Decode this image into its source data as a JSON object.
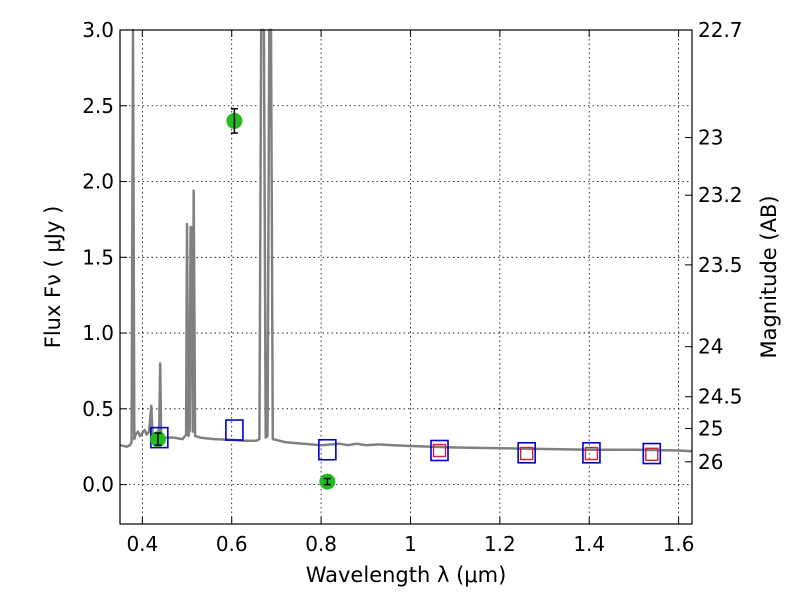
{
  "chart_data": {
    "type": "scatter",
    "xlabel": "Wavelength  λ (μm)",
    "ylabel": "Flux  Fν  ( μJy )",
    "ylabel2": "Magnitude (AB)",
    "xlim": [
      0.35,
      1.63
    ],
    "ylim": [
      -0.26,
      3.0
    ],
    "x_ticks": [
      0.4,
      0.6,
      0.8,
      1.0,
      1.2,
      1.4,
      1.6
    ],
    "x_tick_labels": [
      "0.4",
      "0.6",
      "0.8",
      "1",
      "1.2",
      "1.4",
      "1.6"
    ],
    "y_ticks": [
      0.0,
      0.5,
      1.0,
      1.5,
      2.0,
      2.5,
      3.0
    ],
    "y_tick_labels": [
      "0.0",
      "0.5",
      "1.0",
      "1.5",
      "2.0",
      "2.5",
      "3.0"
    ],
    "mag_ticks": [
      {
        "label": "22.7",
        "flux": 3.0
      },
      {
        "label": "23",
        "flux": 2.29
      },
      {
        "label": "23.2",
        "flux": 1.91
      },
      {
        "label": "23.5",
        "flux": 1.45
      },
      {
        "label": "24",
        "flux": 0.91
      },
      {
        "label": "24.5",
        "flux": 0.58
      },
      {
        "label": "25",
        "flux": 0.37
      },
      {
        "label": "26",
        "flux": 0.15
      }
    ],
    "grid": true,
    "colors": {
      "spectrum": "#808080",
      "observed": "#22bb22",
      "model_blue": "#0000cc",
      "model_red": "#cc2233",
      "errorbar": "#000000"
    },
    "series": [
      {
        "marker": "green-circle",
        "points": [
          {
            "x": 0.435,
            "y": 0.3,
            "err": 0.04
          },
          {
            "x": 0.606,
            "y": 2.4,
            "err": 0.08
          },
          {
            "x": 0.814,
            "y": 0.02,
            "err": 0.02
          }
        ]
      },
      {
        "marker": "blue-square",
        "points": [
          {
            "x": 0.438,
            "y": 0.31
          },
          {
            "x": 0.606,
            "y": 0.36
          },
          {
            "x": 0.814,
            "y": 0.23
          },
          {
            "x": 1.065,
            "y": 0.225
          },
          {
            "x": 1.26,
            "y": 0.21
          },
          {
            "x": 1.405,
            "y": 0.21
          },
          {
            "x": 1.54,
            "y": 0.205
          }
        ]
      },
      {
        "marker": "red-square",
        "points": [
          {
            "x": 1.065,
            "y": 0.225
          },
          {
            "x": 1.26,
            "y": 0.205
          },
          {
            "x": 1.405,
            "y": 0.205
          },
          {
            "x": 1.54,
            "y": 0.2
          }
        ]
      },
      {
        "marker": "line",
        "points": [
          [
            0.35,
            0.26
          ],
          [
            0.365,
            0.25
          ],
          [
            0.372,
            0.26
          ],
          [
            0.376,
            0.28
          ],
          [
            0.379,
            3.0
          ],
          [
            0.382,
            0.3
          ],
          [
            0.385,
            0.33
          ],
          [
            0.39,
            0.35
          ],
          [
            0.395,
            0.32
          ],
          [
            0.4,
            0.34
          ],
          [
            0.405,
            0.36
          ],
          [
            0.41,
            0.33
          ],
          [
            0.415,
            0.35
          ],
          [
            0.42,
            0.52
          ],
          [
            0.423,
            0.33
          ],
          [
            0.43,
            0.32
          ],
          [
            0.435,
            0.33
          ],
          [
            0.438,
            0.4
          ],
          [
            0.44,
            0.8
          ],
          [
            0.442,
            0.33
          ],
          [
            0.45,
            0.31
          ],
          [
            0.47,
            0.31
          ],
          [
            0.49,
            0.3
          ],
          [
            0.498,
            0.33
          ],
          [
            0.5,
            1.72
          ],
          [
            0.503,
            0.32
          ],
          [
            0.506,
            0.36
          ],
          [
            0.508,
            1.7
          ],
          [
            0.51,
            1.7
          ],
          [
            0.513,
            0.35
          ],
          [
            0.515,
            1.94
          ],
          [
            0.518,
            0.32
          ],
          [
            0.53,
            0.31
          ],
          [
            0.56,
            0.3
          ],
          [
            0.6,
            0.295
          ],
          [
            0.63,
            0.29
          ],
          [
            0.655,
            0.29
          ],
          [
            0.662,
            0.3
          ],
          [
            0.666,
            3.0
          ],
          [
            0.672,
            3.0
          ],
          [
            0.676,
            0.31
          ],
          [
            0.68,
            0.32
          ],
          [
            0.684,
            3.0
          ],
          [
            0.688,
            3.0
          ],
          [
            0.692,
            0.3
          ],
          [
            0.72,
            0.28
          ],
          [
            0.76,
            0.27
          ],
          [
            0.8,
            0.26
          ],
          [
            0.84,
            0.27
          ],
          [
            0.86,
            0.26
          ],
          [
            0.88,
            0.27
          ],
          [
            0.9,
            0.26
          ],
          [
            0.93,
            0.265
          ],
          [
            0.96,
            0.26
          ],
          [
            1.0,
            0.255
          ],
          [
            1.05,
            0.25
          ],
          [
            1.1,
            0.245
          ],
          [
            1.2,
            0.24
          ],
          [
            1.3,
            0.235
          ],
          [
            1.4,
            0.23
          ],
          [
            1.5,
            0.23
          ],
          [
            1.6,
            0.225
          ],
          [
            1.63,
            0.22
          ]
        ]
      }
    ]
  }
}
